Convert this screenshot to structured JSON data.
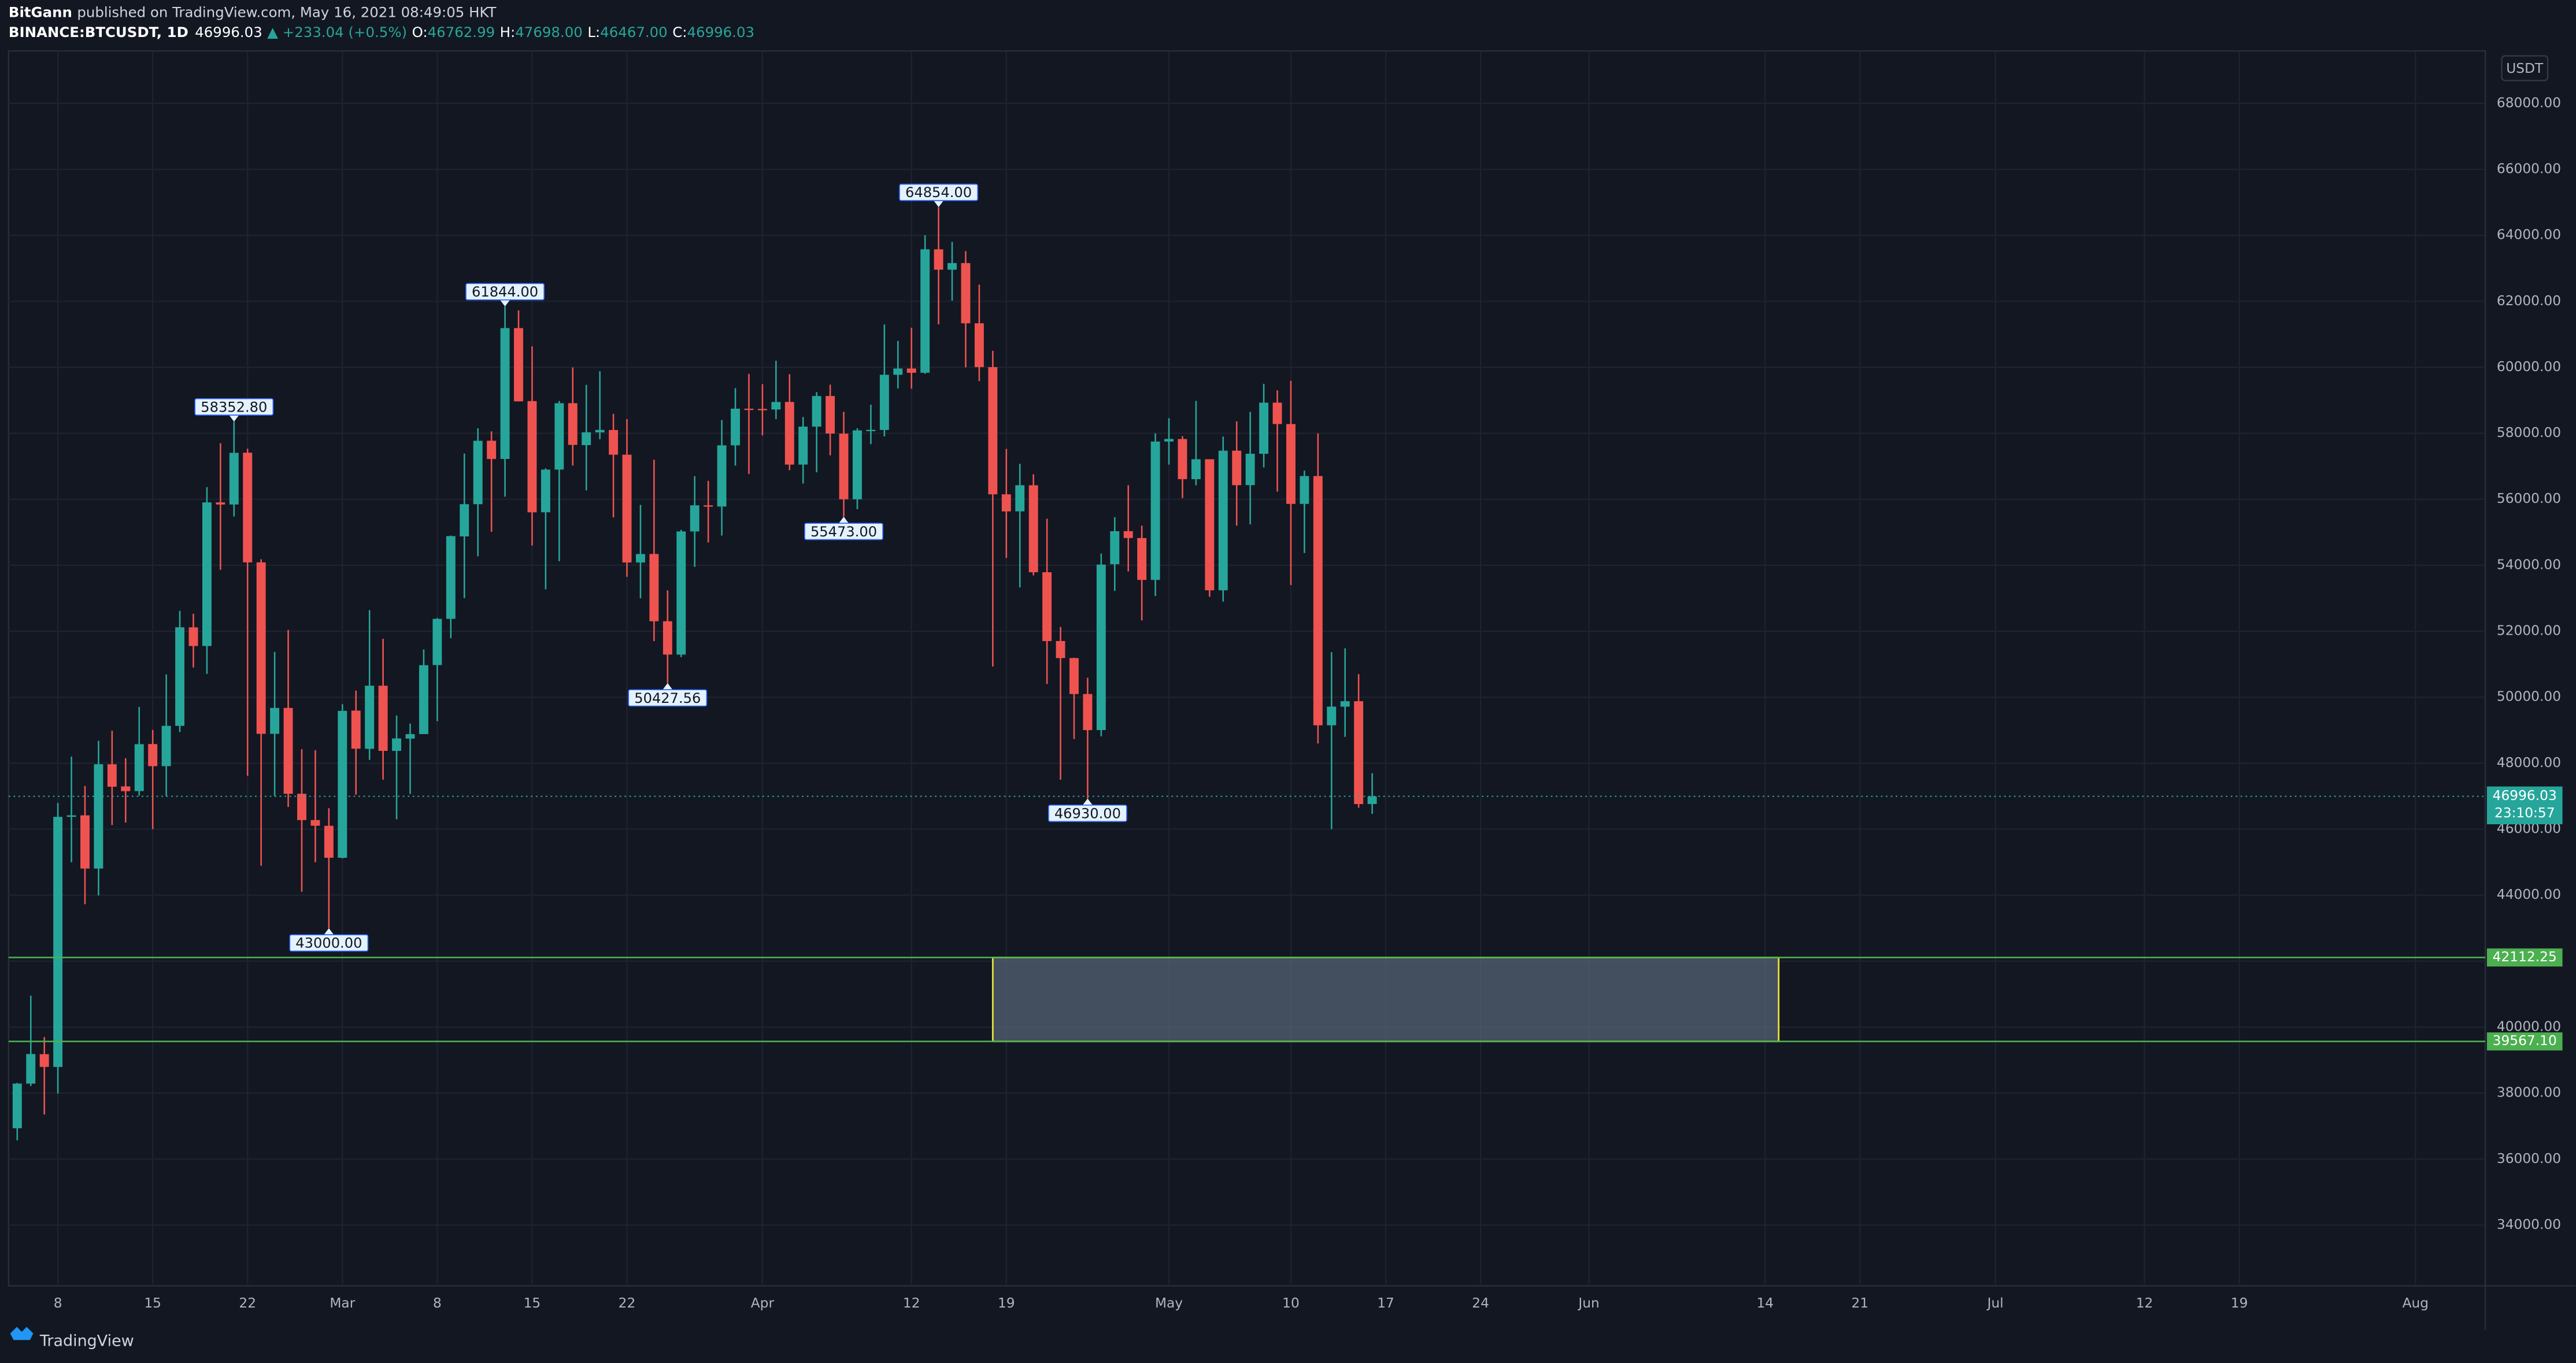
{
  "header": {
    "author": "BitGann",
    "published": "published on TradingView.com, May 16, 2021 08:49:05 HKT",
    "symbol": "BINANCE:BTCUSDT, 1D",
    "last": "46996.03",
    "change": "▲ +233.04 (+0.5%)",
    "ohlc": [
      {
        "key": "O:",
        "value": "46762.99"
      },
      {
        "key": "H:",
        "value": "47698.00"
      },
      {
        "key": "L:",
        "value": "46467.00"
      },
      {
        "key": "C:",
        "value": "46996.03"
      }
    ]
  },
  "chart_data": {
    "type": "candlestick",
    "currency": "USDT",
    "x": [
      "2021-02-05",
      "2021-02-06",
      "2021-02-07",
      "2021-02-08",
      "2021-02-09",
      "2021-02-10",
      "2021-02-11",
      "2021-02-12",
      "2021-02-13",
      "2021-02-14",
      "2021-02-15",
      "2021-02-16",
      "2021-02-17",
      "2021-02-18",
      "2021-02-19",
      "2021-02-20",
      "2021-02-21",
      "2021-02-22",
      "2021-02-23",
      "2021-02-24",
      "2021-02-25",
      "2021-02-26",
      "2021-02-27",
      "2021-02-28",
      "2021-03-01",
      "2021-03-02",
      "2021-03-03",
      "2021-03-04",
      "2021-03-05",
      "2021-03-06",
      "2021-03-07",
      "2021-03-08",
      "2021-03-09",
      "2021-03-10",
      "2021-03-11",
      "2021-03-12",
      "2021-03-13",
      "2021-03-14",
      "2021-03-15",
      "2021-03-16",
      "2021-03-17",
      "2021-03-18",
      "2021-03-19",
      "2021-03-20",
      "2021-03-21",
      "2021-03-22",
      "2021-03-23",
      "2021-03-24",
      "2021-03-25",
      "2021-03-26",
      "2021-03-27",
      "2021-03-28",
      "2021-03-29",
      "2021-03-30",
      "2021-03-31",
      "2021-04-01",
      "2021-04-02",
      "2021-04-03",
      "2021-04-04",
      "2021-04-05",
      "2021-04-06",
      "2021-04-07",
      "2021-04-08",
      "2021-04-09",
      "2021-04-10",
      "2021-04-11",
      "2021-04-12",
      "2021-04-13",
      "2021-04-14",
      "2021-04-15",
      "2021-04-16",
      "2021-04-17",
      "2021-04-18",
      "2021-04-19",
      "2021-04-20",
      "2021-04-21",
      "2021-04-22",
      "2021-04-23",
      "2021-04-24",
      "2021-04-25",
      "2021-04-26",
      "2021-04-27",
      "2021-04-28",
      "2021-04-29",
      "2021-04-30",
      "2021-05-01",
      "2021-05-02",
      "2021-05-03",
      "2021-05-04",
      "2021-05-05",
      "2021-05-06",
      "2021-05-07",
      "2021-05-08",
      "2021-05-09",
      "2021-05-10",
      "2021-05-11",
      "2021-05-12",
      "2021-05-13",
      "2021-05-14",
      "2021-05-15",
      "2021-05-16"
    ],
    "open": [
      36936,
      38289,
      39181,
      38795,
      46374,
      46420,
      44807,
      47968,
      47298,
      47156,
      48580,
      47911,
      49133,
      52118,
      51553,
      55906,
      55842,
      57412,
      54088,
      48891,
      49676,
      47074,
      46277,
      46103,
      45134,
      49595,
      48436,
      50349,
      48374,
      48746,
      48883,
      50976,
      52376,
      54874,
      55851,
      57774,
      57222,
      61188,
      58976,
      55606,
      56900,
      58912,
      57641,
      58030,
      58100,
      57351,
      54083,
      54342,
      52303,
      51293,
      55025,
      55817,
      55781,
      57635,
      58746,
      58739,
      58721,
      58950,
      57052,
      58202,
      59130,
      57990,
      56000,
      58088,
      58101,
      59774,
      59964,
      59835,
      63576,
      62959,
      63159,
      61334,
      60006,
      56150,
      55634,
      56425,
      53788,
      51703,
      51187,
      50097,
      49005,
      54031,
      55034,
      54825,
      53556,
      57750,
      57826,
      56610,
      57214,
      53241,
      57473,
      56429,
      57380,
      58929,
      58280,
      55860,
      56704,
      49150,
      49715,
      49880,
      46762.99
    ],
    "high": [
      38310,
      40955,
      39700,
      46794,
      48200,
      47310,
      48678,
      48985,
      48150,
      49707,
      49010,
      50689,
      52618,
      52530,
      56368,
      57700,
      58352.8,
      57533,
      54183,
      51374,
      52041,
      48425,
      48394,
      46638,
      49790,
      50200,
      52640,
      51773,
      49448,
      49200,
      51450,
      52402,
      54900,
      57387,
      58150,
      58058,
      61844,
      61724,
      60633,
      56938,
      58981,
      60000,
      59468,
      59880,
      58589,
      58430,
      55830,
      57200,
      53238,
      55073,
      56700,
      56559,
      58400,
      59368,
      59800,
      59490,
      60200,
      59791,
      58493,
      59251,
      59475,
      58650,
      58153,
      58869,
      61300,
      60800,
      61200,
      64000,
      64854,
      63800,
      63520,
      62506,
      60499,
      57526,
      57076,
      56757,
      55410,
      52131,
      51200,
      50591,
      54356,
      55460,
      56428,
      55200,
      58000,
      58458,
      57911,
      58981,
      57214,
      57900,
      58360,
      58650,
      59500,
      59300,
      59592,
      56870,
      58000,
      51367,
      51483,
      50700,
      47698
    ],
    "low": [
      36570,
      38215,
      37351,
      37988,
      45000,
      43727,
      43994,
      46125,
      46202,
      47014,
      46000,
      47003,
      48947,
      50901,
      50710,
      53863,
      55477,
      47622,
      44893,
      47003,
      46674,
      44106,
      45000,
      43000,
      45115,
      47047,
      48100,
      47500,
      46300,
      47070,
      48882,
      49274,
      51789,
      53005,
      54272,
      55012,
      56078,
      58966,
      54600,
      53271,
      54123,
      57023,
      56270,
      57820,
      55450,
      53650,
      53000,
      51700,
      50427.56,
      51214,
      53950,
      54691,
      54900,
      57022,
      56769,
      57935,
      58428,
      56880,
      56478,
      56817,
      57333,
      55473,
      55700,
      57670,
      57905,
      59360,
      59350,
      59801,
      61301,
      62020,
      60000,
      59580,
      50931,
      54221,
      53329,
      53695,
      50400,
      47500,
      48734,
      46930,
      48817,
      53222,
      53813,
      52330,
      53068,
      57052,
      56035,
      56425,
      53046,
      52900,
      55200,
      55241,
      56963,
      56235,
      53400,
      54370,
      48600,
      46000,
      48800,
      46650,
      46467
    ],
    "close": [
      38290,
      39186,
      38795,
      46374,
      46420,
      44807,
      47969,
      47287,
      47153,
      48577,
      47911,
      49133,
      52119,
      51552,
      55906,
      55841,
      57408,
      54087,
      48891,
      49676,
      47073,
      46276,
      46106,
      45135,
      49587,
      48440,
      50349,
      48374,
      48751,
      48882,
      50971,
      52375,
      54884,
      55851,
      57773,
      57221,
      61188,
      58968,
      55605,
      56900,
      58912,
      57648,
      58030,
      58102,
      57351,
      54083,
      54340,
      52303,
      51293,
      55025,
      55817,
      55777,
      57635,
      58746,
      58740,
      58720,
      58950,
      57051,
      58202,
      59129,
      57992,
      56000,
      58088,
      58104,
      59774,
      59964,
      59835,
      63576,
      62959,
      63159,
      61334,
      60006,
      56150,
      55633,
      56425,
      53788,
      51702,
      51187,
      50097,
      49004,
      54021,
      55033,
      54825,
      53556,
      57750,
      57828,
      56610,
      57213,
      53241,
      57473,
      56428,
      57380,
      58928,
      58281,
      55860,
      56704,
      49150,
      49716,
      49880,
      46762,
      46996.03
    ],
    "up_color": "#26a69a",
    "down_color": "#ef5350",
    "xlim": [
      "2021-02-04",
      "2021-08-06"
    ],
    "xticks": [
      {
        "value": "2021-02-08",
        "label": "8"
      },
      {
        "value": "2021-02-15",
        "label": "15"
      },
      {
        "value": "2021-02-22",
        "label": "22"
      },
      {
        "value": "2021-03-01",
        "label": "Mar"
      },
      {
        "value": "2021-03-08",
        "label": "8"
      },
      {
        "value": "2021-03-15",
        "label": "15"
      },
      {
        "value": "2021-03-22",
        "label": "22"
      },
      {
        "value": "2021-04-01",
        "label": "Apr"
      },
      {
        "value": "2021-04-12",
        "label": "12"
      },
      {
        "value": "2021-04-19",
        "label": "19"
      },
      {
        "value": "2021-05-01",
        "label": "May"
      },
      {
        "value": "2021-05-10",
        "label": "10"
      },
      {
        "value": "2021-05-17",
        "label": "17"
      },
      {
        "value": "2021-05-24",
        "label": "24"
      },
      {
        "value": "2021-06-01",
        "label": "Jun"
      },
      {
        "value": "2021-06-14",
        "label": "14"
      },
      {
        "value": "2021-06-21",
        "label": "21"
      },
      {
        "value": "2021-07-01",
        "label": "Jul"
      },
      {
        "value": "2021-07-12",
        "label": "12"
      },
      {
        "value": "2021-07-19",
        "label": "19"
      },
      {
        "value": "2021-08-01",
        "label": "Aug"
      }
    ],
    "ylim": [
      32160,
      69590
    ],
    "yticks": [
      {
        "value": 34000,
        "label": "34000.00"
      },
      {
        "value": 36000,
        "label": "36000.00"
      },
      {
        "value": 38000,
        "label": "38000.00"
      },
      {
        "value": 40000,
        "label": "40000.00"
      },
      {
        "value": 42000,
        "label": "42000.00"
      },
      {
        "value": 44000,
        "label": "44000.00"
      },
      {
        "value": 46000,
        "label": "46000.00"
      },
      {
        "value": 48000,
        "label": "48000.00"
      },
      {
        "value": 50000,
        "label": "50000.00"
      },
      {
        "value": 52000,
        "label": "52000.00"
      },
      {
        "value": 54000,
        "label": "54000.00"
      },
      {
        "value": 56000,
        "label": "56000.00"
      },
      {
        "value": 58000,
        "label": "58000.00"
      },
      {
        "value": 60000,
        "label": "60000.00"
      },
      {
        "value": 62000,
        "label": "62000.00"
      },
      {
        "value": 64000,
        "label": "64000.00"
      },
      {
        "value": 66000,
        "label": "66000.00"
      },
      {
        "value": 68000,
        "label": "68000.00"
      }
    ],
    "grid": true,
    "annotations": [
      {
        "x": "2021-02-21",
        "value": 58352.8,
        "label": "58352.80"
      },
      {
        "x": "2021-02-28",
        "value": 43000,
        "label": "43000.00"
      },
      {
        "x": "2021-03-13",
        "value": 61844,
        "label": "61844.00"
      },
      {
        "x": "2021-03-25",
        "value": 50427.56,
        "label": "50427.56"
      },
      {
        "x": "2021-04-07",
        "value": 55473,
        "label": "55473.00"
      },
      {
        "x": "2021-04-14",
        "value": 64854,
        "label": "64854.00"
      },
      {
        "x": "2021-04-25",
        "value": 46930,
        "label": "46930.00"
      }
    ],
    "hlines": [
      {
        "value": 42112.25,
        "label": "42112.25"
      },
      {
        "value": 39567.1,
        "label": "39567.10"
      }
    ],
    "hline_color": "#4caf50",
    "zone": {
      "x": [
        "2021-04-18",
        "2021-06-15"
      ],
      "y": [
        42112.25,
        39567.1
      ]
    },
    "last_price": 46996.03,
    "countdown": "23:10:57"
  },
  "footer": {
    "brand": "TradingView"
  }
}
